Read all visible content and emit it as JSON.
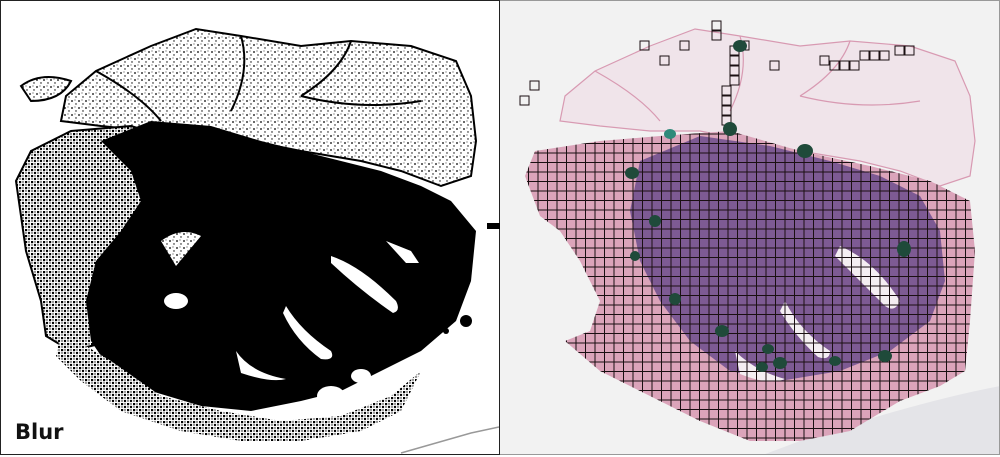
{
  "left_panel": {
    "label": "Blur",
    "description_name": "binary-blur-mask"
  },
  "right_panel": {
    "description_name": "tissue-tile-grid-overlay"
  },
  "colors": {
    "mask_black": "#000000",
    "tissue_pink": "#d9a0b6",
    "tissue_purple": "#7d5a93",
    "grid_line": "#1a0f12",
    "ink_green": "#1f4a3a",
    "background_gray": "#f2f2f2"
  },
  "icons": [
    "arrow-right-icon"
  ]
}
